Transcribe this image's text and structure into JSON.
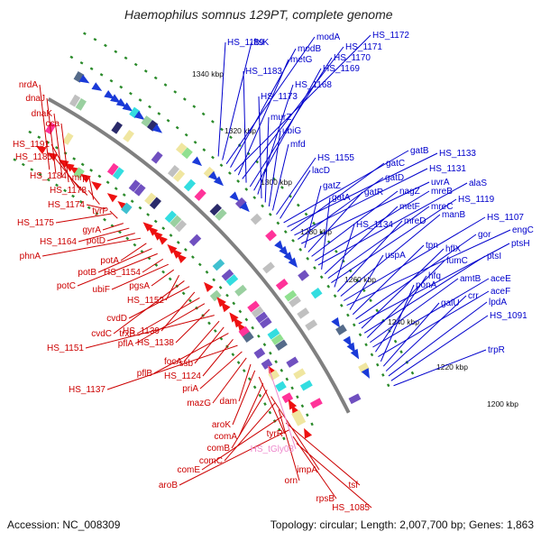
{
  "title": "Haemophilus somnus 129PT, complete genome",
  "footer": {
    "accession": "Accession: NC_008309",
    "summary": "Topology: circular; Length: 2,007,700 bp; Genes: 1,863"
  },
  "colors": {
    "backbone": "#808080",
    "ticks": "#2a8a2a",
    "forward_labels": "#0000cc",
    "reverse_labels": "#cc0000",
    "rna_labels": "#ee88cc",
    "forward_arrows": "#1a3ad8",
    "reverse_arrows": "#ee1111"
  },
  "kbp_labels": [
    "1340 kbp",
    "1320 kbp",
    "1300 kbp",
    "1280 kbp",
    "1260 kbp",
    "1240 kbp",
    "1220 kbp",
    "1200 kbp"
  ],
  "forward_genes": [
    "HS_1189",
    "ftsK",
    "modA",
    "modB",
    "HS_1172",
    "metG",
    "HS_1171",
    "HS_1183",
    "HS_1170",
    "HS_1169",
    "HS_1168",
    "HS_1173",
    "murZ",
    "ubiG",
    "mfd",
    "HS_1155",
    "lacD",
    "gatB",
    "HS_1133",
    "gatC",
    "HS_1131",
    "gatD",
    "uvrA",
    "gatZ",
    "gatR",
    "nagZ",
    "mreB",
    "alaS",
    "gatA",
    "metF",
    "mreC",
    "HS_1119",
    "HS_1134",
    "mreD",
    "manB",
    "HS_1107",
    "engC",
    "uspA",
    "tpn",
    "gor",
    "ptsH",
    "hflX",
    "ptsI",
    "fumC",
    "amtB",
    "aceE",
    "hfq",
    "aceF",
    "ponA",
    "galU",
    "crr",
    "lpdA",
    "HS_1091",
    "trpR"
  ],
  "reverse_genes": [
    "nrdA",
    "dnaJ",
    "dnaK",
    "cca",
    "HS_1191",
    "HS_1185",
    "HS_1184",
    "mrp",
    "HS_1178",
    "HS_1174",
    "HS_1175",
    "tyrP",
    "gyrA",
    "HS_1164",
    "potD",
    "phnA",
    "potA",
    "potB",
    "potC",
    "HS_1154",
    "ubiF",
    "pgsA",
    "HS_1152",
    "cvdC",
    "cvdD",
    "HS_1139",
    "trxB",
    "pflA",
    "HS_1138",
    "HS_1151",
    "focA",
    "ssb",
    "pflB",
    "HS_1124",
    "HS_1137",
    "priA",
    "mazG",
    "dam",
    "aroK",
    "tyrR",
    "comA",
    "comB",
    "impA",
    "comC",
    "orn",
    "comE",
    "tsf",
    "aroB",
    "rpsB",
    "HS_1085"
  ],
  "rna_genes": [
    "HS_tGly03"
  ]
}
